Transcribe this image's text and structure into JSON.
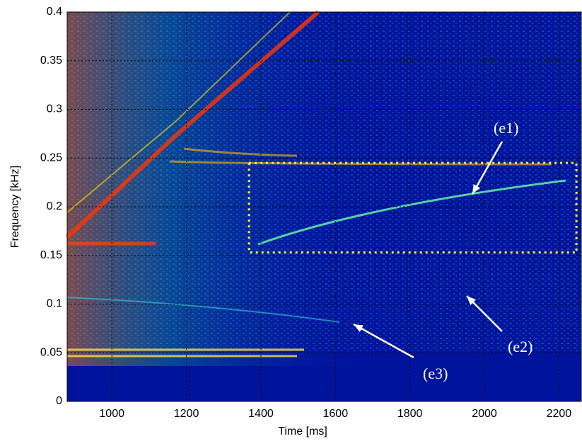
{
  "chart_data": {
    "type": "spectrogram",
    "xlabel": "Time [ms]",
    "ylabel": "Frequency [kHz]",
    "xlim": [
      880,
      2260
    ],
    "xticks": [
      1000,
      1200,
      1400,
      1600,
      1800,
      2000,
      2200
    ],
    "ylim": [
      0,
      0.4
    ],
    "yticks": [
      0,
      0.05,
      0.1,
      0.15,
      0.2,
      0.25,
      0.3,
      0.35,
      0.4
    ],
    "grid": true,
    "highlight": {
      "xlim": [
        1368,
        2247
      ],
      "ylim": [
        0.153,
        0.245
      ],
      "color": "#ffee22"
    },
    "annotations": [
      "(e1)",
      "(e2)",
      "(e3)"
    ]
  }
}
